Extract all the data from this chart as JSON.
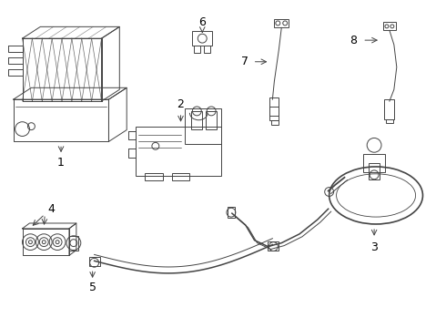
{
  "bg_color": "#ffffff",
  "line_color": "#444444",
  "text_color": "#000000",
  "figsize": [
    4.9,
    3.6
  ],
  "dpi": 100
}
